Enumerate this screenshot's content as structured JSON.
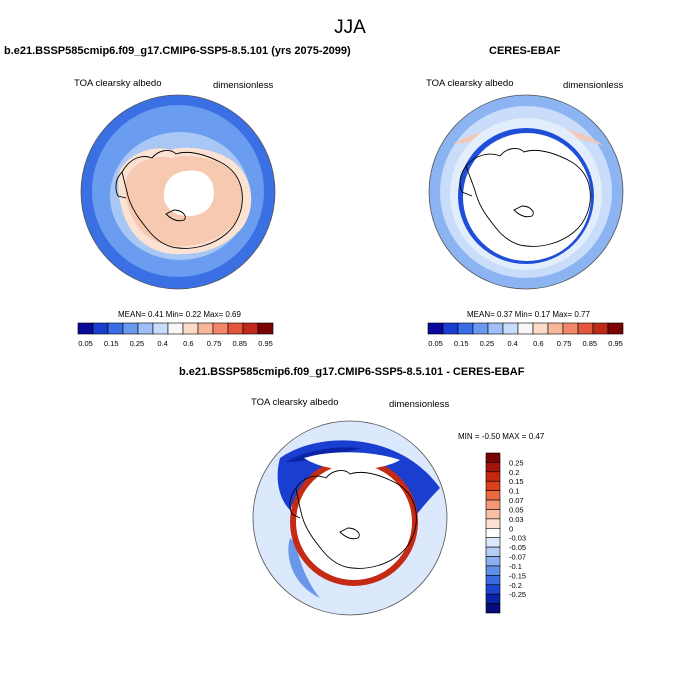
{
  "page_title": "JJA",
  "panels": {
    "model": {
      "title": "b.e21.BSSP585cmip6.f09_g17.CMIP6-SSP5-8.5.101 (yrs 2075-2099)",
      "variable": "TOA clearsky albedo",
      "units": "dimensionless",
      "stats": "MEAN=   0.41  Min=   0.22  Max=   0.69"
    },
    "obs": {
      "title": "CERES-EBAF",
      "variable": "TOA clearsky albedo",
      "units": "dimensionless",
      "stats": "MEAN=   0.37  Min=   0.17  Max=   0.77"
    },
    "diff": {
      "title": "b.e21.BSSP585cmip6.f09_g17.CMIP6-SSP5-8.5.101 - CERES-EBAF",
      "variable": "TOA clearsky albedo",
      "units": "dimensionless",
      "stats": "MIN =  -0.50 MAX =   0.47"
    }
  },
  "chart_data": [
    {
      "type": "heatmap",
      "projection": "south-polar-stereographic",
      "title": "b.e21.BSSP585cmip6.f09_g17.CMIP6-SSP5-8.5.101 (yrs 2075-2099)",
      "variable": "TOA clearsky albedo",
      "units": "dimensionless",
      "mean": 0.41,
      "min": 0.22,
      "max": 0.69,
      "colorbar_labels": [
        "0.05",
        "0.15",
        "0.25",
        "0.4",
        "0.6",
        "0.75",
        "0.85",
        "0.95"
      ],
      "colorbar_colors": [
        "#08089a",
        "#1a3fd0",
        "#3a6ee6",
        "#6a9af0",
        "#9ec0f7",
        "#c8dcfb",
        "#f7f7f7",
        "#fcdcc8",
        "#f9b799",
        "#f4866a",
        "#e2563d",
        "#c02a1a",
        "#7a0404"
      ],
      "bands": [
        {
          "label": "pole",
          "value": "missing",
          "color": "#ffffff"
        },
        {
          "label": "antarctic-continent",
          "value": "0.6-0.75",
          "color": "#f7c9b0"
        },
        {
          "label": "continent-edge",
          "value": "0.4-0.6",
          "color": "#fbe2d2"
        },
        {
          "label": "sea-ice-zone",
          "value": "0.25-0.4",
          "color": "#a9c7f5"
        },
        {
          "label": "mid-ocean",
          "value": "0.15-0.25",
          "color": "#6a9cf0"
        },
        {
          "label": "outer-ocean",
          "value": "0.05-0.15",
          "color": "#3b70e4"
        }
      ]
    },
    {
      "type": "heatmap",
      "projection": "south-polar-stereographic",
      "title": "CERES-EBAF",
      "variable": "TOA clearsky albedo",
      "units": "dimensionless",
      "mean": 0.37,
      "min": 0.17,
      "max": 0.77,
      "colorbar_labels": [
        "0.05",
        "0.15",
        "0.25",
        "0.4",
        "0.6",
        "0.75",
        "0.85",
        "0.95"
      ],
      "colorbar_colors": [
        "#08089a",
        "#1a3fd0",
        "#3a6ee6",
        "#6a9af0",
        "#9ec0f7",
        "#c8dcfb",
        "#f7f7f7",
        "#fcdcc8",
        "#f9b799",
        "#f4866a",
        "#e2563d",
        "#c02a1a",
        "#7a0404"
      ],
      "bands": [
        {
          "label": "polar-night",
          "value": "missing",
          "color": "#ffffff"
        },
        {
          "label": "inner-ring",
          "value": "0.05-0.15",
          "color": "#1f4fd8"
        },
        {
          "label": "sea-ice-zone",
          "value": "0.4-0.75",
          "color": "#f2c9b4"
        },
        {
          "label": "mid-ocean",
          "value": "0.25-0.4",
          "color": "#c9dcfa"
        },
        {
          "label": "outer-ocean",
          "value": "0.15-0.25",
          "color": "#8db4f2"
        }
      ]
    },
    {
      "type": "heatmap",
      "projection": "south-polar-stereographic",
      "title": "b.e21.BSSP585cmip6.f09_g17.CMIP6-SSP5-8.5.101 - CERES-EBAF",
      "variable": "TOA clearsky albedo",
      "units": "dimensionless",
      "min": -0.5,
      "max": 0.47,
      "colorbar_labels": [
        "0.25",
        "0.2",
        "0.15",
        "0.1",
        "0.07",
        "0.05",
        "0.03",
        "0",
        "-0.03",
        "-0.05",
        "-0.07",
        "-0.1",
        "-0.15",
        "-0.2",
        "-0.25"
      ],
      "colorbar_colors": [
        "#7a0404",
        "#a5140b",
        "#c8280f",
        "#dc3f1a",
        "#ea6a3f",
        "#f39774",
        "#f8c0a4",
        "#fde3d4",
        "#ffffff",
        "#dae8fb",
        "#b4cdf5",
        "#8ab0ef",
        "#5f8fe8",
        "#3a6ae0",
        "#1d45cf",
        "#0a24a8",
        "#060a7a"
      ],
      "bands": [
        {
          "label": "pole",
          "value": "missing",
          "color": "#ffffff"
        },
        {
          "label": "sea-ice-edge-ring",
          "value": "0.1-0.25",
          "color": "#c42a14"
        },
        {
          "label": "northern-ocean-band",
          "value": "-0.25 to -0.1",
          "color": "#1a3ed0"
        },
        {
          "label": "outer-ocean",
          "value": "-0.05 to 0",
          "color": "#dce8fb"
        }
      ]
    }
  ]
}
